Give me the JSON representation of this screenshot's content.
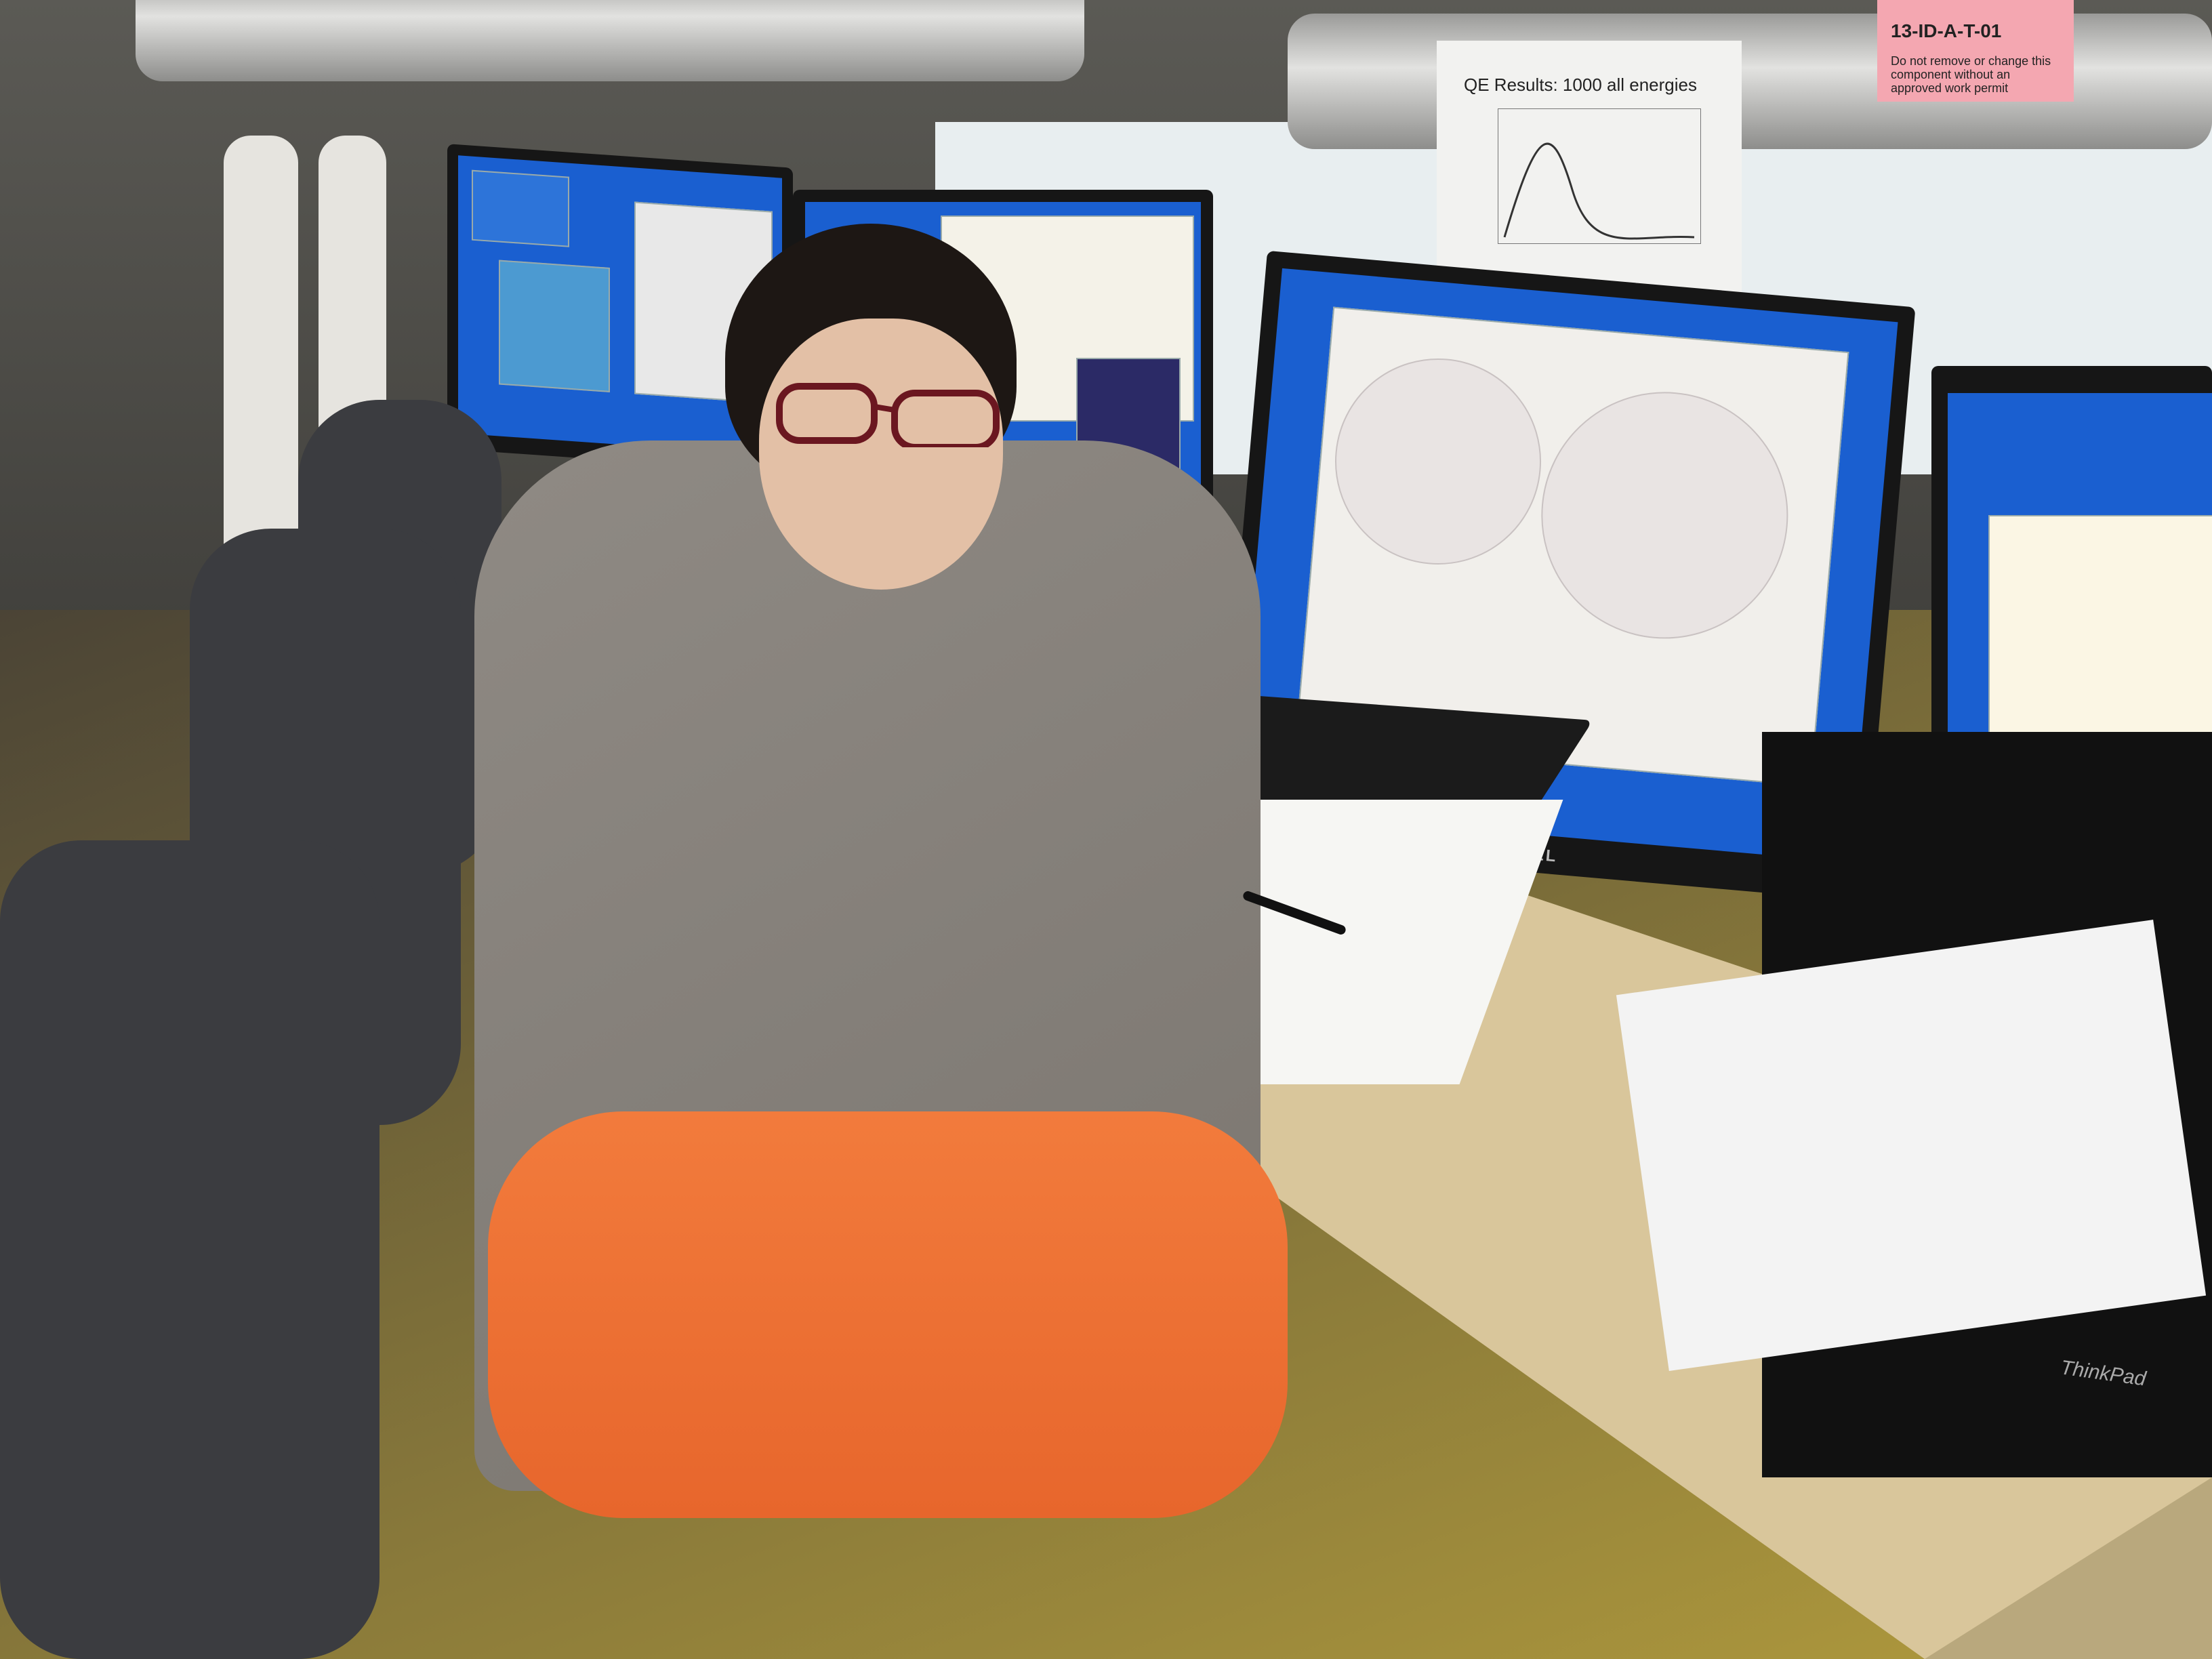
{
  "scene": {
    "description_tags": [
      "person",
      "desk",
      "monitors",
      "notebook",
      "keyboard",
      "laptop",
      "beamline"
    ]
  },
  "texts": {
    "qe_sheet_title": "QE Results: 1000 all energies",
    "sign_code": "13-ID-A-T-01",
    "sign_warning": "Do not remove or change this component without an approved work permit",
    "dell_label": "DELL",
    "thinkpad_label": "ThinkPad"
  },
  "colors": {
    "screen_blue": "#1a5fd0",
    "pants_orange": "#f27b3c",
    "hoodie_gray": "#8f8a84",
    "sign_pink": "#f4a7b1"
  }
}
